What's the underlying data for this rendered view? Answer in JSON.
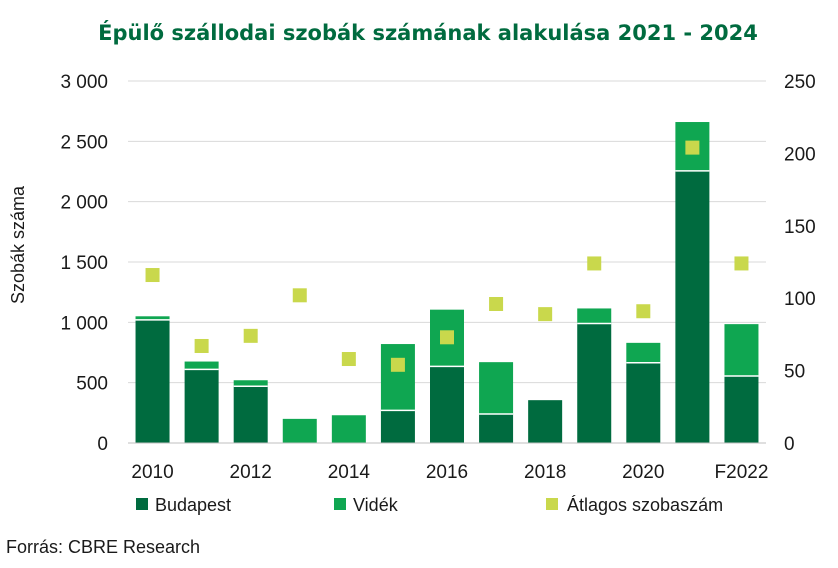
{
  "chart_data": {
    "type": "bar",
    "title": "Épülő szállodai szobák számának alakulása 2021 - 2024",
    "ylabel": "Szobák száma",
    "y_right_label": "",
    "ylim": [
      0,
      3000
    ],
    "y2lim": [
      0,
      250
    ],
    "y_ticks": [
      "3 000",
      "2 500",
      "2 000",
      "1 500",
      "1 000",
      "500",
      "0"
    ],
    "y2_ticks": [
      "250",
      "200",
      "150",
      "100",
      "50",
      "0"
    ],
    "categories": [
      "2010",
      "2011",
      "2012",
      "2013",
      "2014",
      "2015",
      "2016",
      "2017",
      "2018",
      "2019",
      "2020",
      "2021",
      "F2022"
    ],
    "x_tick_labels": [
      "2010",
      "",
      "2012",
      "",
      "2014",
      "",
      "2016",
      "",
      "2018",
      "",
      "2020",
      "",
      "F2022"
    ],
    "stacked": true,
    "series": [
      {
        "name": "Budapest",
        "kind": "bar",
        "axis": "left",
        "color": "#006b3f",
        "values": [
          1020,
          610,
          470,
          0,
          0,
          270,
          635,
          240,
          355,
          990,
          665,
          2255,
          555
        ]
      },
      {
        "name": "Vidék",
        "kind": "bar",
        "axis": "left",
        "color": "#0fa651",
        "values": [
          30,
          65,
          50,
          200,
          230,
          550,
          470,
          430,
          0,
          125,
          165,
          405,
          430
        ]
      },
      {
        "name": "Átlagos szobaszám",
        "kind": "point",
        "axis": "right",
        "color": "#c9d84c",
        "values": [
          116,
          67,
          74,
          102,
          58,
          54,
          73,
          96,
          89,
          124,
          91,
          204,
          124
        ]
      }
    ],
    "grid": true,
    "legend": "bottom"
  },
  "source": "Forrás:  CBRE Research",
  "colors": {
    "title": "#006b3f",
    "grid": "#d9d9d9",
    "axis": "#bfbfbf"
  }
}
